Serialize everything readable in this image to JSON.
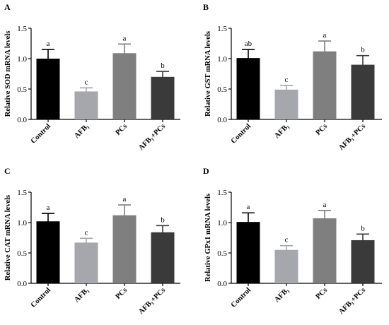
{
  "chart_data": [
    {
      "type": "bar",
      "panel": "A",
      "categories": [
        "Control",
        "AFB₁",
        "PCs",
        "AFB₁+PCs"
      ],
      "values": [
        1.0,
        0.46,
        1.09,
        0.7
      ],
      "errors": [
        0.15,
        0.06,
        0.15,
        0.09
      ],
      "significance": [
        "a",
        "c",
        "a",
        "b"
      ],
      "colors": [
        "#000000",
        "#a6a6ad",
        "#7f7f7f",
        "#3a3a3a"
      ],
      "ylabel": "Relative SOD mRNA levels",
      "ylim": [
        0,
        1.5
      ],
      "yticks": [
        "0.0",
        "0.5",
        "1.0",
        "1.5"
      ]
    },
    {
      "type": "bar",
      "panel": "B",
      "categories": [
        "Control",
        "AFB₁",
        "PCs",
        "AFB₁+PCs"
      ],
      "values": [
        1.01,
        0.49,
        1.12,
        0.9
      ],
      "errors": [
        0.14,
        0.07,
        0.17,
        0.15
      ],
      "significance": [
        "ab",
        "c",
        "a",
        "b"
      ],
      "colors": [
        "#000000",
        "#a6a6ad",
        "#7f7f7f",
        "#3a3a3a"
      ],
      "ylabel": "Relative GST mRNA levels",
      "ylim": [
        0,
        1.5
      ],
      "yticks": [
        "0.0",
        "0.5",
        "1.0",
        "1.5"
      ]
    },
    {
      "type": "bar",
      "panel": "C",
      "categories": [
        "Control",
        "AFB₁",
        "PCs",
        "AFB₁+PCs"
      ],
      "values": [
        1.02,
        0.67,
        1.12,
        0.84
      ],
      "errors": [
        0.13,
        0.07,
        0.17,
        0.11
      ],
      "significance": [
        "a",
        "c",
        "a",
        "b"
      ],
      "colors": [
        "#000000",
        "#a6a6ad",
        "#7f7f7f",
        "#3a3a3a"
      ],
      "ylabel": "Relative CAT mRNA levels",
      "ylim": [
        0,
        1.5
      ],
      "yticks": [
        "0.0",
        "0.5",
        "1.0",
        "1.5"
      ]
    },
    {
      "type": "bar",
      "panel": "D",
      "categories": [
        "Control",
        "AFB₁",
        "PCs",
        "AFB₁+PCs"
      ],
      "values": [
        1.01,
        0.55,
        1.07,
        0.71
      ],
      "errors": [
        0.15,
        0.07,
        0.13,
        0.1
      ],
      "significance": [
        "a",
        "c",
        "a",
        "b"
      ],
      "colors": [
        "#000000",
        "#a6a6ad",
        "#7f7f7f",
        "#3a3a3a"
      ],
      "ylabel": "Relative GPx1 mRNA levels",
      "ylim": [
        0,
        1.5
      ],
      "yticks": [
        "0.0",
        "0.5",
        "1.0",
        "1.5"
      ]
    }
  ]
}
